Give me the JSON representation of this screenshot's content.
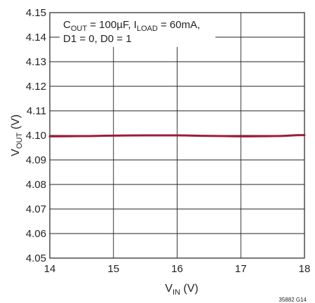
{
  "chart_data": {
    "type": "line",
    "title": "",
    "xlabel": {
      "main": "V",
      "sub": "IN",
      "unit": " (V)"
    },
    "ylabel": {
      "main": "V",
      "sub": "OUT",
      "unit": " (V)"
    },
    "xlim": [
      14,
      18
    ],
    "ylim": [
      4.05,
      4.15
    ],
    "x_ticks": [
      "14",
      "15",
      "16",
      "17",
      "18"
    ],
    "y_ticks": [
      "4.05",
      "4.06",
      "4.07",
      "4.08",
      "4.09",
      "4.10",
      "4.11",
      "4.12",
      "4.13",
      "4.14",
      "4.15"
    ],
    "grid": true,
    "annotation": {
      "line1": [
        {
          "text": "C",
          "sub": false
        },
        {
          "text": "OUT",
          "sub": true
        },
        {
          "text": " = 100µF, I",
          "sub": false
        },
        {
          "text": "LOAD",
          "sub": true
        },
        {
          "text": " = 60mA,",
          "sub": false
        }
      ],
      "line2": "D1 = 0, D0 = 1"
    },
    "figure_id": "35882 G14",
    "series_color": "#9b1c3a",
    "series": [
      {
        "x": [
          14.0,
          14.5,
          15.0,
          15.5,
          16.0,
          16.5,
          17.0,
          17.5,
          18.0
        ],
        "y": [
          4.0996,
          4.0997,
          4.0999,
          4.1,
          4.1,
          4.0998,
          4.0996,
          4.0997,
          4.1001
        ]
      }
    ]
  }
}
